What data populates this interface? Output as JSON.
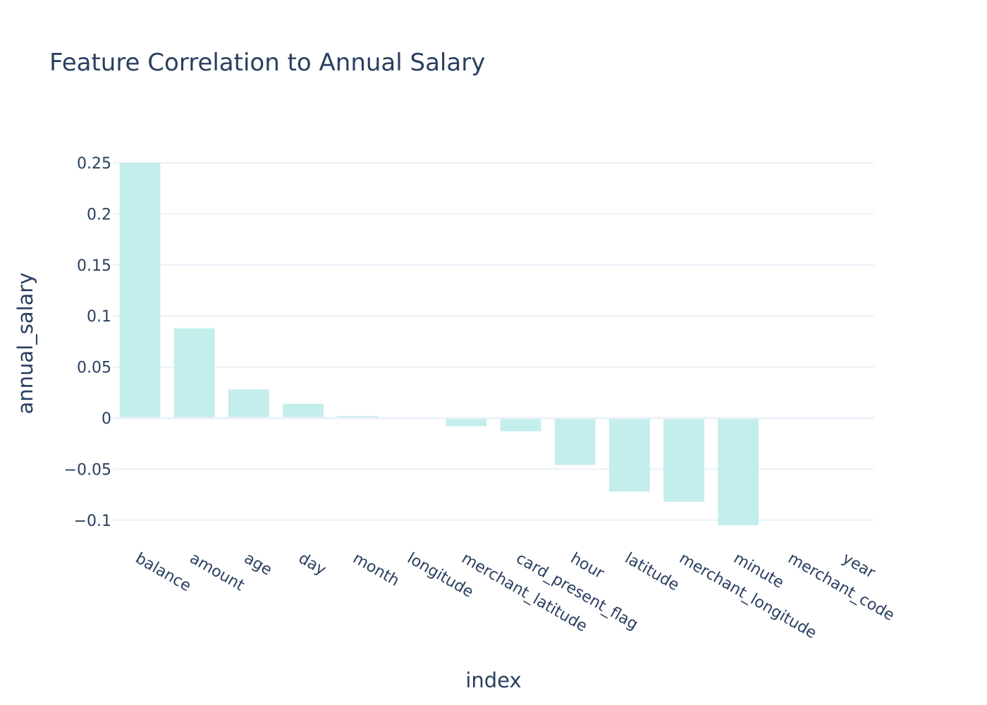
{
  "chart_data": {
    "type": "bar",
    "title": "Feature Correlation to Annual Salary",
    "xlabel": "index",
    "ylabel": "annual_salary",
    "categories": [
      "balance",
      "amount",
      "age",
      "day",
      "month",
      "longitude",
      "merchant_latitude",
      "card_present_flag",
      "hour",
      "latitude",
      "merchant_longitude",
      "minute",
      "merchant_code",
      "year"
    ],
    "values": [
      0.25,
      0.088,
      0.028,
      0.014,
      0.002,
      -0.001,
      -0.008,
      -0.013,
      -0.046,
      -0.072,
      -0.082,
      -0.105,
      0,
      0
    ],
    "ylim": [
      -0.1167,
      0.25
    ],
    "yticks": [
      0.25,
      0.2,
      0.15,
      0.1,
      0.05,
      0,
      -0.05,
      -0.1
    ],
    "ytick_labels": [
      "0.25",
      "0.2",
      "0.15",
      "0.1",
      "0.05",
      "0",
      "−0.05",
      "−0.1"
    ],
    "grid": true,
    "legend": "none",
    "bar_color": "#c3eeec",
    "text_color": "#2a3f5f",
    "grid_color": "#ebf0f8"
  }
}
